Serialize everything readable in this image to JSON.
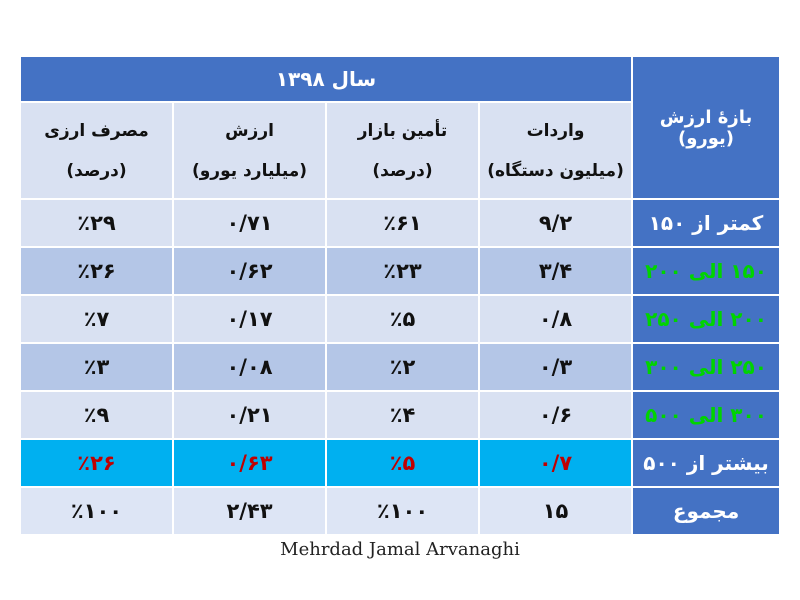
{
  "table": {
    "year_title": "سال ۱۳۹۸",
    "corner_header": "بازهٔ ارزش (یورو)",
    "columns": [
      {
        "line1": "واردات",
        "line2": "(میلیون دستگاه)"
      },
      {
        "line1": "تأمین بازار",
        "line2": "(درصد)"
      },
      {
        "line1": "ارزش",
        "line2": "(میلیارد یورو)"
      },
      {
        "line1": "مصرف ارزی",
        "line2": "(درصد)"
      }
    ],
    "rows": [
      {
        "range": "کمتر از ۱۵۰",
        "values": [
          "۹/۲",
          "٪۶۱",
          "۰/۷۱",
          "٪۲۹"
        ]
      },
      {
        "range": "۱۵۰ الی ۲۰۰",
        "values": [
          "۳/۴",
          "٪۲۳",
          "۰/۶۲",
          "٪۲۶"
        ]
      },
      {
        "range": "۲۰۰ الی ۲۵۰",
        "values": [
          "۰/۸",
          "٪۵",
          "۰/۱۷",
          "٪۷"
        ]
      },
      {
        "range": "۲۵۰ الی ۳۰۰",
        "values": [
          "۰/۳",
          "٪۲",
          "۰/۰۸",
          "٪۳"
        ]
      },
      {
        "range": "۳۰۰ الی ۵۰۰",
        "values": [
          "۰/۶",
          "٪۴",
          "۰/۲۱",
          "٪۹"
        ]
      },
      {
        "range": "بیشتر از ۵۰۰",
        "values": [
          "۰/۷",
          "٪۵",
          "۰/۶۳",
          "٪۲۶"
        ]
      },
      {
        "range": "مجموع",
        "values": [
          "۱۵",
          "٪۱۰۰",
          "۲/۴۳",
          "٪۱۰۰"
        ]
      }
    ]
  },
  "credit": "Mehrdad Jamal Arvanaghi",
  "colors": {
    "header_blue": "#4472c4",
    "light_row": "#d9e1f2",
    "dark_row": "#b4c6e7",
    "highlight_row": "#00b0f0",
    "highlight_text": "#c00000",
    "range_text": "#00d400"
  }
}
